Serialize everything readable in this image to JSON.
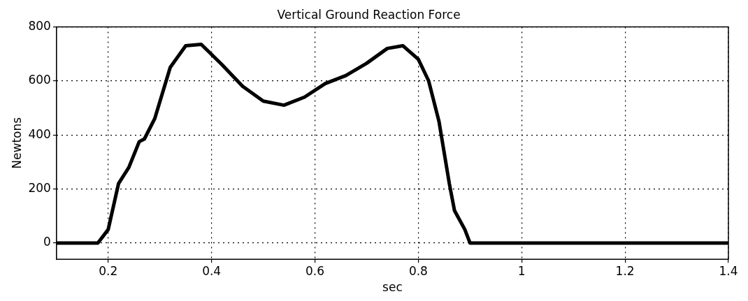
{
  "chart_data": {
    "type": "line",
    "title": "Vertical Ground Reaction Force",
    "xlabel": "sec",
    "ylabel": "Newtons",
    "x": [
      0.1,
      0.18,
      0.2,
      0.22,
      0.24,
      0.26,
      0.27,
      0.29,
      0.32,
      0.35,
      0.38,
      0.42,
      0.46,
      0.5,
      0.54,
      0.58,
      0.62,
      0.66,
      0.7,
      0.74,
      0.77,
      0.8,
      0.82,
      0.84,
      0.86,
      0.87,
      0.89,
      0.9,
      1.4
    ],
    "series": [
      {
        "color": "#000000",
        "values": [
          0,
          0,
          50,
          220,
          280,
          375,
          385,
          460,
          650,
          730,
          735,
          660,
          580,
          525,
          510,
          540,
          590,
          620,
          665,
          720,
          730,
          680,
          600,
          450,
          220,
          120,
          50,
          0,
          0
        ]
      }
    ],
    "xlim": [
      0.1,
      1.4
    ],
    "xticks": [
      0.2,
      0.4,
      0.6,
      0.8,
      1,
      1.2,
      1.4
    ],
    "ylim": [
      -60,
      800
    ],
    "yticks": [
      0,
      200,
      400,
      600,
      800
    ],
    "grid": true,
    "line_style": "solid",
    "marker": "none",
    "legend": false
  }
}
